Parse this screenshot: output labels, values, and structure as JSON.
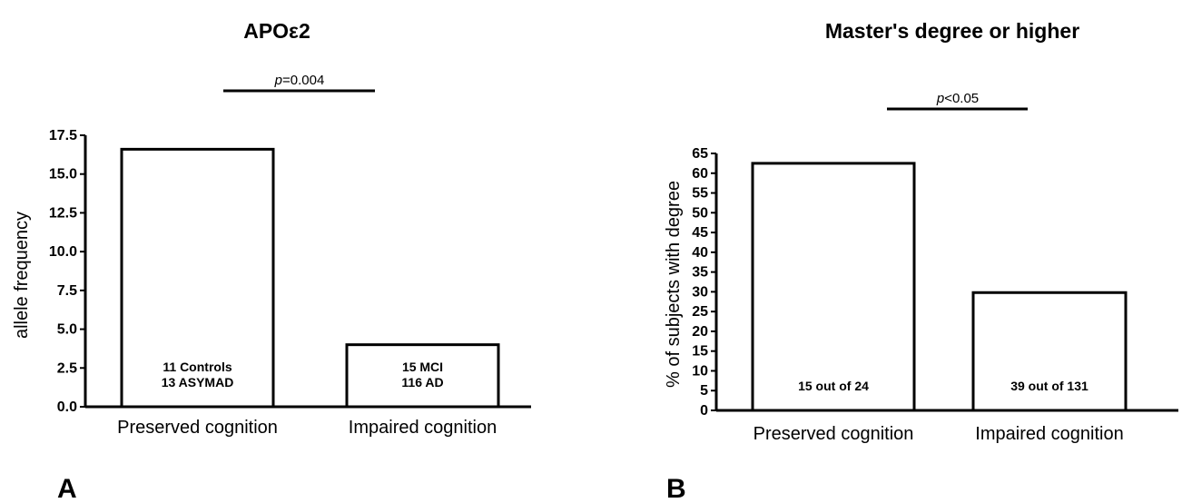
{
  "chart_data": [
    {
      "type": "bar",
      "panel_label": "A",
      "title": "APOε2",
      "ylabel": "allele frequency",
      "xlabel": "",
      "ylim": [
        0,
        17.5
      ],
      "yticks": [
        "0.0",
        "2.5",
        "5.0",
        "7.5",
        "10.0",
        "12.5",
        "15.0",
        "17.5"
      ],
      "categories": [
        "Preserved cognition",
        "Impaired cognition"
      ],
      "values": [
        16.6,
        4.0
      ],
      "bar_annotations": [
        [
          "11 Controls",
          "13 ASYMAD"
        ],
        [
          "15 MCI",
          "116 AD"
        ]
      ],
      "significance": {
        "p_symbol": "p",
        "text": "=0.004"
      },
      "grid": false,
      "legend": "none"
    },
    {
      "type": "bar",
      "panel_label": "B",
      "title": "Master's degree or higher",
      "ylabel": "% of subjects with degree",
      "xlabel": "",
      "ylim": [
        0,
        65
      ],
      "yticks": [
        "0",
        "5",
        "10",
        "15",
        "20",
        "25",
        "30",
        "35",
        "40",
        "45",
        "50",
        "55",
        "60",
        "65"
      ],
      "categories": [
        "Preserved cognition",
        "Impaired cognition"
      ],
      "values": [
        62.5,
        29.8
      ],
      "bar_annotations": [
        [
          "15 out of 24"
        ],
        [
          "39 out of 131"
        ]
      ],
      "significance": {
        "p_symbol": "p",
        "text": "<0.05"
      },
      "grid": false,
      "legend": "none"
    }
  ]
}
